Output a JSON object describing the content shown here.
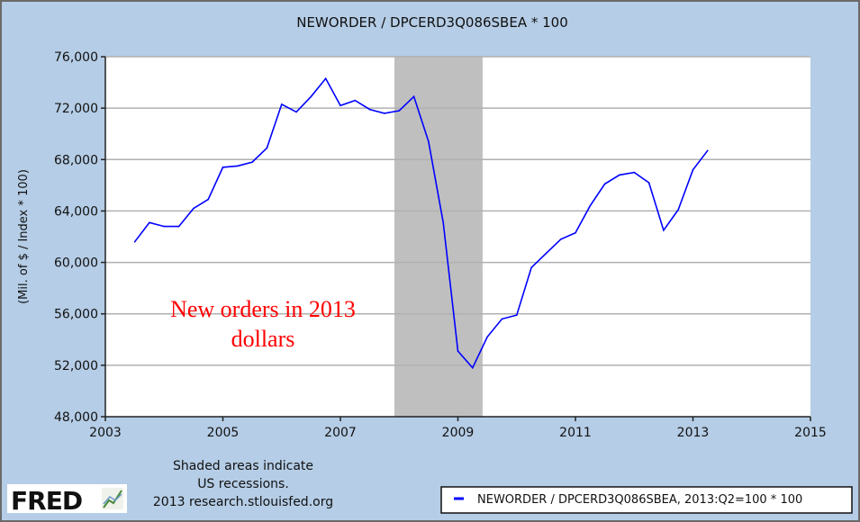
{
  "chart_data": {
    "type": "line",
    "title": "NEWORDER / DPCERD3Q086SBEA * 100",
    "xlabel": "",
    "ylabel": "(Mil. of $ / Index * 100)",
    "xlim": [
      2003,
      2015
    ],
    "ylim": [
      48000,
      76000
    ],
    "x_ticks": [
      2003,
      2005,
      2007,
      2009,
      2011,
      2013,
      2015
    ],
    "x_tick_labels": [
      "2003",
      "2005",
      "2007",
      "2009",
      "2011",
      "2013",
      "2015"
    ],
    "y_ticks": [
      48000,
      52000,
      56000,
      60000,
      64000,
      68000,
      72000,
      76000
    ],
    "y_tick_labels": [
      "48,000",
      "52,000",
      "56,000",
      "60,000",
      "64,000",
      "68,000",
      "72,000",
      "76,000"
    ],
    "grid": true,
    "recessions": [
      [
        2007.92,
        2009.42
      ]
    ],
    "annotation": [
      "New orders in 2013",
      "dollars"
    ],
    "series": [
      {
        "name": "NEWORDER / DPCERD3Q086SBEA, 2013:Q2=100 * 100",
        "color": "#0000ff",
        "x": [
          2003.5,
          2003.75,
          2004.0,
          2004.25,
          2004.5,
          2004.75,
          2005.0,
          2005.25,
          2005.5,
          2005.75,
          2006.0,
          2006.25,
          2006.5,
          2006.75,
          2007.0,
          2007.25,
          2007.5,
          2007.75,
          2008.0,
          2008.25,
          2008.5,
          2008.75,
          2009.0,
          2009.25,
          2009.5,
          2009.75,
          2010.0,
          2010.25,
          2010.5,
          2010.75,
          2011.0,
          2011.25,
          2011.5,
          2011.75,
          2012.0,
          2012.25,
          2012.5,
          2012.75,
          2013.0,
          2013.25
        ],
        "values": [
          61600,
          63100,
          62800,
          62800,
          64200,
          64900,
          67400,
          67500,
          67800,
          68900,
          72300,
          71700,
          72900,
          74300,
          72200,
          72600,
          71900,
          71600,
          71800,
          72900,
          69400,
          63100,
          53100,
          51800,
          54200,
          55600,
          55900,
          59600,
          60700,
          61800,
          62300,
          64400,
          66100,
          66800,
          67000,
          66200,
          62500,
          64100,
          67200,
          68700
        ]
      }
    ],
    "legend_placement": "bottom-right"
  },
  "footer": {
    "note_line1": "Shaded areas indicate",
    "note_line2": "US recessions.",
    "note_line3": "2013 research.stlouisfed.org",
    "logo_text": "FRED"
  },
  "colors": {
    "background": "#b5cde6",
    "recession": "#bfbfbf",
    "line": "#0000ff",
    "annotation": "#ff0000"
  }
}
